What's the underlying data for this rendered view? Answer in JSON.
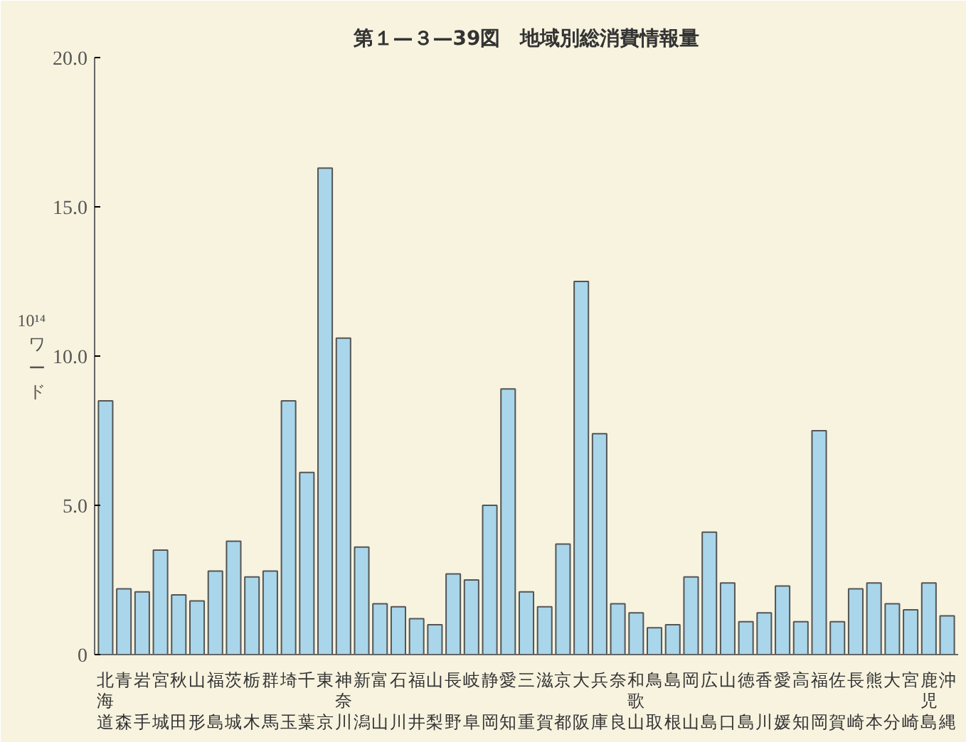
{
  "chart_data": {
    "type": "bar",
    "title": "第１—３—39図　地域別総消費情報量",
    "ylabel": "10¹⁴ワード",
    "categories": [
      "北海道",
      "青森",
      "岩手",
      "宮城",
      "秋田",
      "山形",
      "福島",
      "茨城",
      "栃木",
      "群馬",
      "埼玉",
      "千葉",
      "東京",
      "神奈川",
      "新潟",
      "富山",
      "石川",
      "福井",
      "山梨",
      "長野",
      "岐阜",
      "静岡",
      "愛知",
      "三重",
      "滋賀",
      "京都",
      "大阪",
      "兵庫",
      "奈良",
      "和歌山",
      "鳥取",
      "島根",
      "岡山",
      "広島",
      "山口",
      "徳島",
      "香川",
      "愛媛",
      "高知",
      "福岡",
      "佐賀",
      "長崎",
      "熊本",
      "大分",
      "宮崎",
      "鹿児島",
      "沖縄"
    ],
    "values": [
      8.5,
      2.2,
      2.1,
      3.5,
      2.0,
      1.8,
      2.8,
      3.8,
      2.6,
      2.8,
      8.5,
      6.1,
      16.3,
      10.6,
      3.6,
      1.7,
      1.6,
      1.2,
      1.0,
      2.7,
      2.5,
      5.0,
      8.9,
      2.1,
      1.6,
      3.7,
      12.5,
      7.4,
      1.7,
      1.4,
      0.9,
      1.0,
      2.6,
      4.1,
      2.4,
      1.1,
      1.4,
      2.3,
      1.1,
      7.5,
      1.1,
      2.2,
      2.4,
      1.7,
      1.5,
      2.4,
      1.3
    ],
    "color": "#a9d6ea",
    "ylim": [
      0,
      20
    ],
    "yticks": [
      0,
      {
        "value": 5,
        "label": "5.0"
      },
      {
        "value": 10,
        "label": "10.0"
      },
      {
        "value": 15,
        "label": "15.0"
      },
      {
        "value": 20,
        "label": "20.0"
      }
    ],
    "grid": false
  }
}
